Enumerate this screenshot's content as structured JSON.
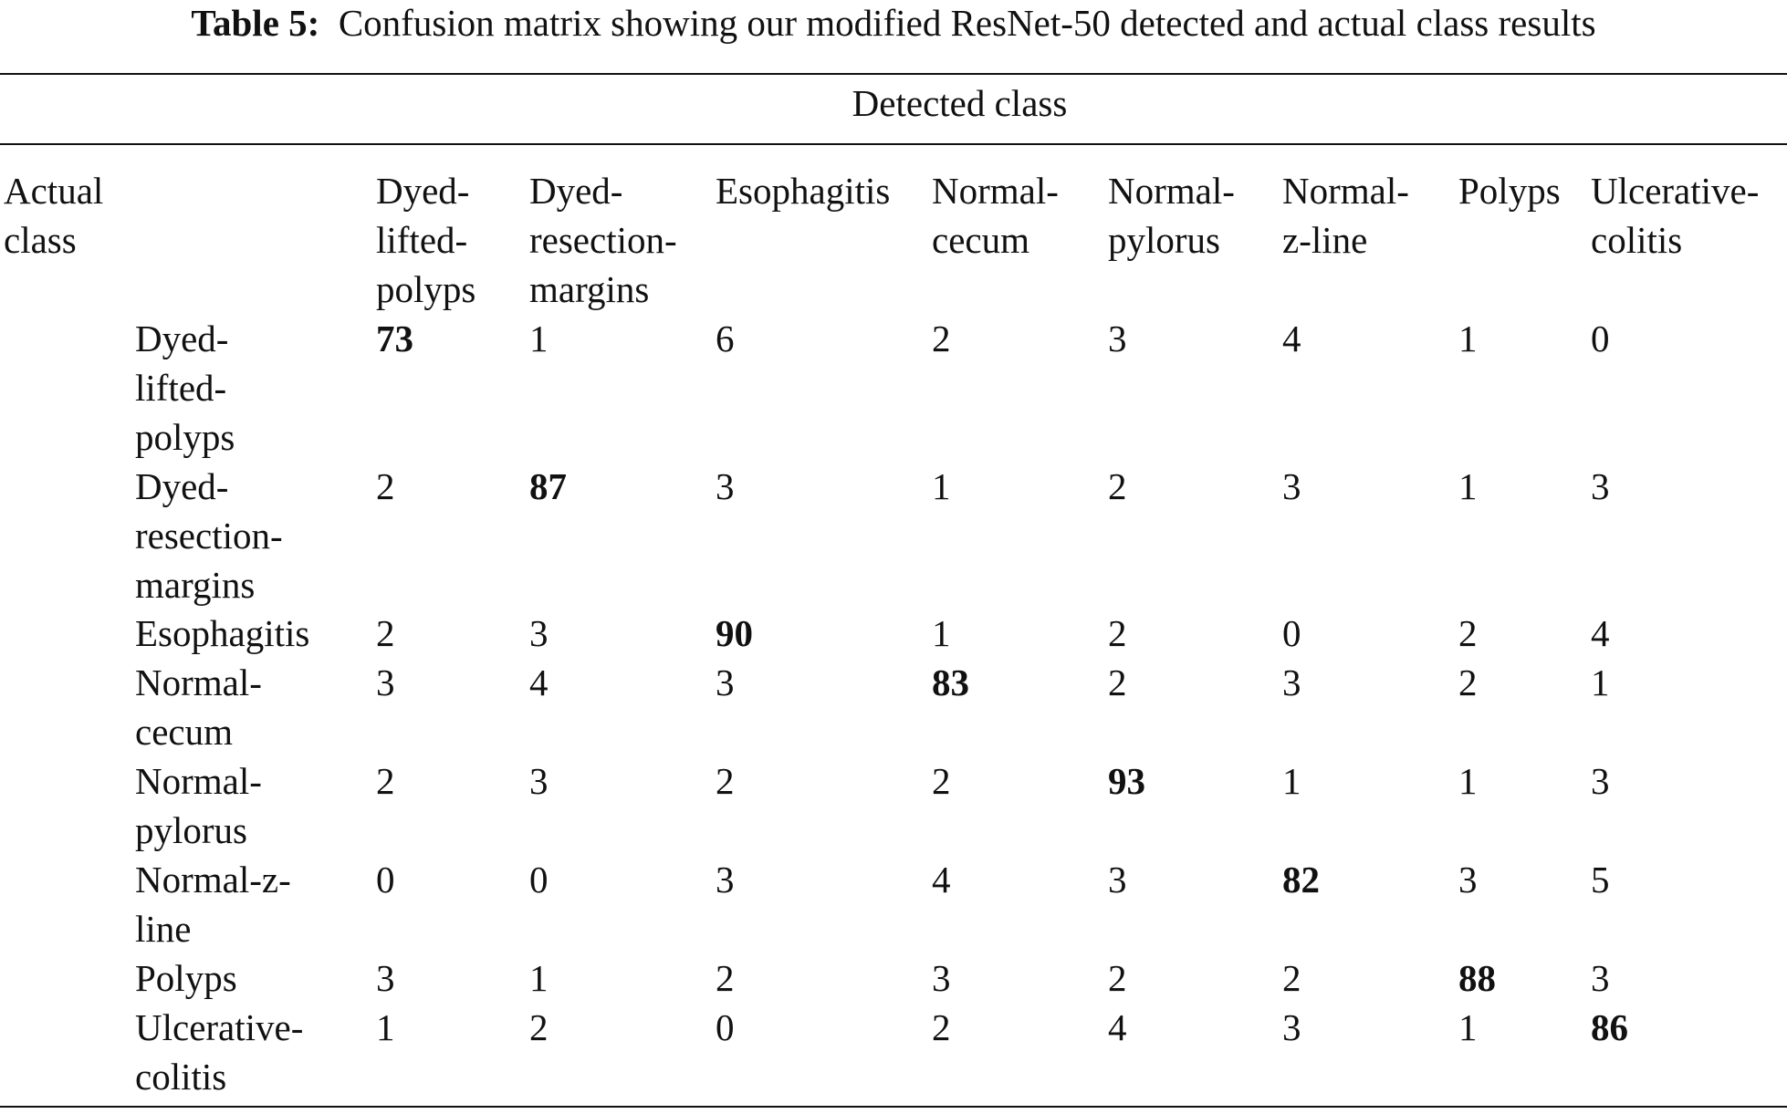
{
  "caption": {
    "label": "Table 5:",
    "text": "Confusion matrix showing our modified ResNet-50 detected and actual class results"
  },
  "detected_header": "Detected class",
  "actual_header": [
    "Actual",
    "class"
  ],
  "columns": [
    [
      "Dyed-",
      "lifted-",
      "polyps"
    ],
    [
      "Dyed-",
      "resection-",
      "margins"
    ],
    [
      "Esophagitis"
    ],
    [
      "Normal-",
      "cecum"
    ],
    [
      "Normal-",
      "pylorus"
    ],
    [
      "Normal-",
      "z-line"
    ],
    [
      "Polyps"
    ],
    [
      "Ulcerative-",
      "colitis"
    ]
  ],
  "rows": [
    {
      "label": [
        "Dyed-",
        "lifted-",
        "polyps"
      ],
      "values": [
        "73",
        "1",
        "6",
        "2",
        "3",
        "4",
        "1",
        "0"
      ]
    },
    {
      "label": [
        "Dyed-",
        "resection-",
        "margins"
      ],
      "values": [
        "2",
        "87",
        "3",
        "1",
        "2",
        "3",
        "1",
        "3"
      ]
    },
    {
      "label": [
        "Esophagitis"
      ],
      "values": [
        "2",
        "3",
        "90",
        "1",
        "2",
        "0",
        "2",
        "4"
      ]
    },
    {
      "label": [
        "Normal-",
        "cecum"
      ],
      "values": [
        "3",
        "4",
        "3",
        "83",
        "2",
        "3",
        "2",
        "1"
      ]
    },
    {
      "label": [
        "Normal-",
        "pylorus"
      ],
      "values": [
        "2",
        "3",
        "2",
        "2",
        "93",
        "1",
        "1",
        "3"
      ]
    },
    {
      "label": [
        "Normal-z-",
        "line"
      ],
      "values": [
        "0",
        "0",
        "3",
        "4",
        "3",
        "82",
        "3",
        "5"
      ]
    },
    {
      "label": [
        "Polyps"
      ],
      "values": [
        "3",
        "1",
        "2",
        "3",
        "2",
        "2",
        "88",
        "3"
      ]
    },
    {
      "label": [
        "Ulcerative-",
        "colitis"
      ],
      "values": [
        "1",
        "2",
        "0",
        "2",
        "4",
        "3",
        "1",
        "86"
      ]
    }
  ]
}
